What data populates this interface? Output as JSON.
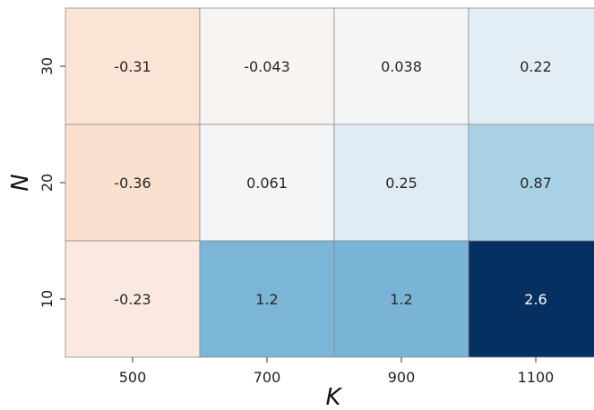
{
  "chart_data": {
    "type": "heatmap",
    "xlabel": "K",
    "ylabel": "N",
    "x_categories": [
      "500",
      "700",
      "900",
      "1100"
    ],
    "y_categories": [
      "30",
      "20",
      "10"
    ],
    "values": [
      [
        -0.31,
        -0.043,
        0.038,
        0.22
      ],
      [
        -0.36,
        0.061,
        0.25,
        0.87
      ],
      [
        -0.23,
        1.2,
        1.2,
        2.6
      ]
    ],
    "value_labels": [
      [
        "-0.31",
        "-0.043",
        "0.038",
        "0.22"
      ],
      [
        "-0.36",
        "0.061",
        "0.25",
        "0.87"
      ],
      [
        "-0.23",
        "1.2",
        "1.2",
        "2.6"
      ]
    ],
    "colormap": "RdBu (diverging, centered at 0)",
    "colorbar": false,
    "grid": false
  },
  "colors": {
    "cells": [
      [
        "#fae4d6",
        "#f8f4f2",
        "#f3f5f7",
        "#e3edf6"
      ],
      [
        "#fbe0d0",
        "#f3f5f7",
        "#e1ebf5",
        "#a9d1e5"
      ],
      [
        "#fae8e1",
        "#7bb6d7",
        "#79b4d6",
        "#053061"
      ]
    ],
    "dark_text": "#262626",
    "light_text": "#ffffff",
    "cell_border": "#8c8c8c"
  }
}
